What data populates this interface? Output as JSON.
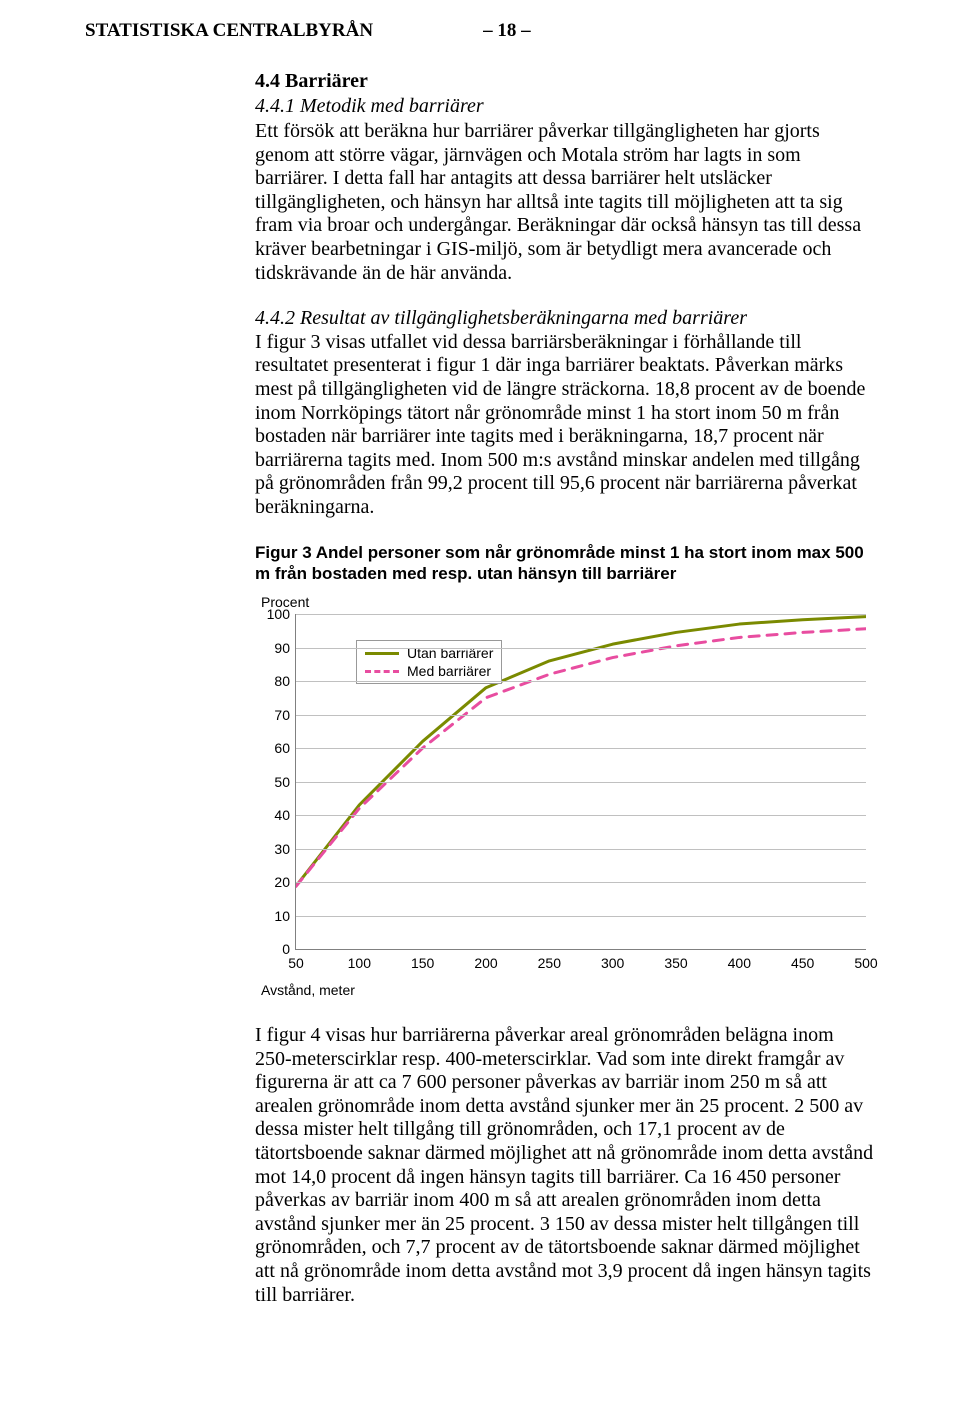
{
  "header": {
    "org": "STATISTISKA CENTRALBYRÅN",
    "page_num": "– 18 –"
  },
  "section": {
    "title": "4.4 Barriärer",
    "sub441_title": "4.4.1 Metodik med barriärer",
    "p441": "Ett försök att beräkna hur barriärer påverkar tillgängligheten har gjorts genom att större vägar, järnvägen och Motala ström har lagts in som barriärer. I detta fall har antagits att dessa barriärer helt utsläcker tillgängligheten, och hänsyn har alltså inte tagits till möjligheten att ta sig fram via broar och undergångar. Beräkningar där också hänsyn tas till dessa kräver bearbetningar i GIS-miljö, som är betydligt mera avancerade och tidskrävande än de här använda.",
    "sub442_title": "4.4.2 Resultat av tillgänglighetsberäkningarna med barriärer",
    "p442": "I figur 3 visas utfallet vid dessa barriärsberäkningar i förhållande till resultatet presenterat i figur 1 där inga barriärer beaktats. Påverkan märks mest på tillgängligheten vid de längre sträckorna. 18,8 procent av de boende inom Norrköpings tätort når grönområde minst 1 ha stort inom 50 m från bostaden när barriärer inte tagits med i beräkningarna, 18,7 procent när barriärerna tagits med. Inom 500 m:s avstånd minskar andelen med tillgång på grönområden från 99,2 procent till 95,6 procent när barriärerna påverkat beräkningarna."
  },
  "figure": {
    "caption": "Figur 3 Andel personer som når grönområde minst 1 ha stort inom max 500 m från bostaden med resp. utan hänsyn till barriärer",
    "y_axis_label": "Procent",
    "x_axis_label": "Avstånd, meter",
    "y_ticks": [
      0,
      10,
      20,
      30,
      40,
      50,
      60,
      70,
      80,
      90,
      100
    ],
    "x_ticks": [
      50,
      100,
      150,
      200,
      250,
      300,
      350,
      400,
      450,
      500
    ],
    "ylim": [
      0,
      100
    ],
    "xlim": [
      50,
      500
    ],
    "grid_color": "#c0c0c0",
    "axis_color": "#808080",
    "background_color": "#ffffff",
    "legend": {
      "utan": "Utan barriärer",
      "med": "Med barriärer"
    },
    "series": {
      "utan": {
        "color": "#7a8a00",
        "width": 3,
        "dash": "none",
        "x": [
          50,
          100,
          150,
          200,
          250,
          300,
          350,
          400,
          450,
          500
        ],
        "y": [
          18.8,
          43,
          62,
          78,
          86,
          91,
          94.5,
          97,
          98.3,
          99.2
        ]
      },
      "med": {
        "color": "#e84da0",
        "width": 3,
        "dash": "10,8",
        "x": [
          50,
          100,
          150,
          200,
          250,
          300,
          350,
          400,
          450,
          500
        ],
        "y": [
          18.7,
          42,
          60,
          75,
          82,
          87,
          90.5,
          93,
          94.5,
          95.6
        ]
      }
    }
  },
  "after": {
    "p": "I figur 4 visas hur barriärerna påverkar areal grönområden belägna inom 250-meterscirklar resp. 400-meterscirklar. Vad som inte direkt framgår av figurerna är att ca 7 600 personer påverkas av barriär inom 250 m så att arealen grönområde inom detta avstånd sjunker mer än 25 procent. 2 500 av dessa mister helt tillgång till grönområden, och 17,1 procent av de tätortsboende saknar därmed möjlighet att nå grönområde inom detta avstånd mot 14,0 procent då ingen hänsyn tagits till barriärer. Ca 16 450 personer påverkas av barriär inom 400 m så att arealen grönområden inom detta avstånd sjunker mer än 25 procent. 3 150 av dessa mister helt tillgången till grönområden, och 7,7 procent av de tätortsboende saknar därmed möjlighet att nå grönområde inom detta avstånd mot 3,9 procent då ingen hänsyn tagits till barriärer."
  }
}
